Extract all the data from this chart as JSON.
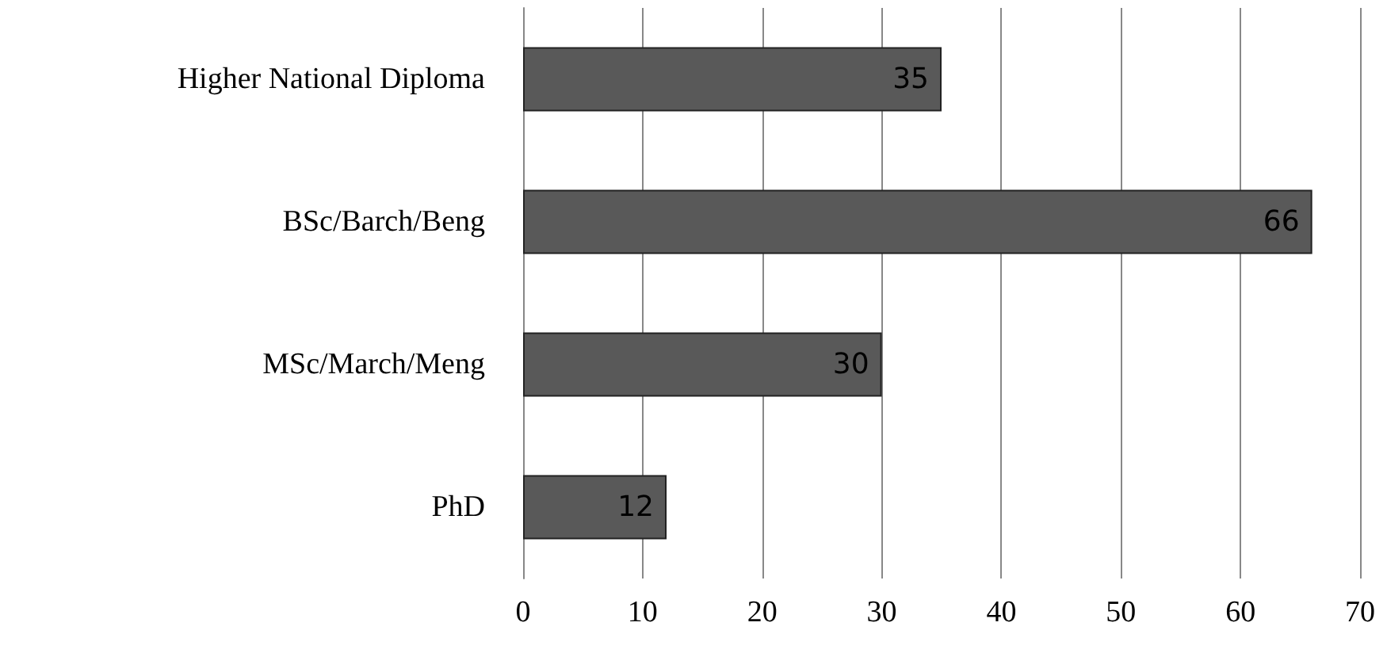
{
  "chart_data": {
    "type": "bar",
    "orientation": "horizontal",
    "categories": [
      "Higher National Diploma",
      "BSc/Barch/Beng",
      "MSc/March/Meng",
      "PhD"
    ],
    "values": [
      35,
      66,
      30,
      12
    ],
    "color": "#595959",
    "xlim": [
      0,
      70
    ],
    "xticks": [
      0,
      10,
      20,
      30,
      40,
      50,
      60,
      70
    ],
    "grid": "x",
    "data_labels": true
  }
}
